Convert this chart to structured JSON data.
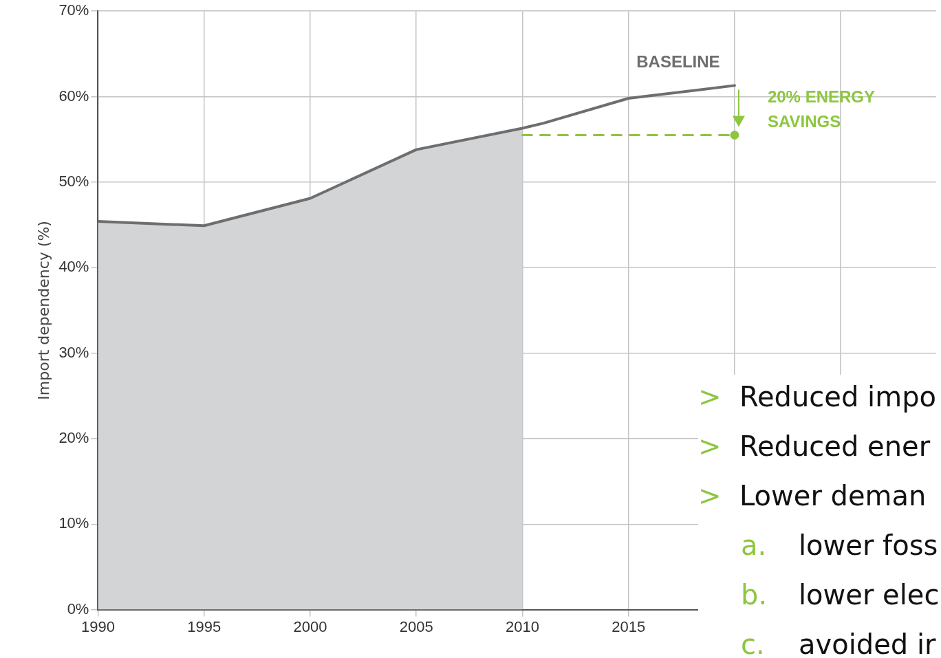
{
  "chart_data": {
    "type": "line",
    "ylabel": "Import dependency (%)",
    "xlim": [
      1990,
      2029.5
    ],
    "xticks": [
      1990,
      1995,
      2000,
      2005,
      2010,
      2015,
      {
        "value": 2020,
        "label": null
      },
      {
        "value": 2025,
        "label": null
      }
    ],
    "ylim": [
      0,
      70
    ],
    "yticks": [
      {
        "value": 0,
        "label": "0%"
      },
      {
        "value": 10,
        "label": "10%"
      },
      {
        "value": 20,
        "label": "20%"
      },
      {
        "value": 30,
        "label": "30%"
      },
      {
        "value": 40,
        "label": "40%"
      },
      {
        "value": 50,
        "label": "50%"
      },
      {
        "value": 60,
        "label": "60%"
      },
      {
        "value": 70,
        "label": "70%"
      }
    ],
    "grid": true,
    "legend": false,
    "marker": "none",
    "series": [
      {
        "type": "area",
        "color": "#d3d4d6",
        "x": [
          1990,
          1995,
          2000,
          2005,
          2010
        ],
        "values": [
          45.4,
          44.9,
          48.1,
          53.8,
          56.3
        ]
      },
      {
        "type": "line",
        "color": "#6d6e70",
        "x": [
          1990,
          1995,
          2000,
          2005,
          2010,
          2011,
          2015,
          2020
        ],
        "values": [
          45.4,
          44.9,
          48.1,
          53.8,
          56.3,
          56.9,
          59.8,
          61.3
        ]
      },
      {
        "type": "line",
        "color": "#8dc63f",
        "line_style": "dashed",
        "x": [
          2010,
          2020
        ],
        "values": [
          55.5,
          55.5
        ]
      },
      {
        "type": "scatter",
        "color": "#8dc63f",
        "marker": "circle",
        "x": [
          2020
        ],
        "values": [
          55.5
        ]
      }
    ],
    "annotations": [
      "BASELINE",
      "20% ENERGY SAVINGS",
      "> Reduced impo",
      "> Reduced ener",
      "> Lower deman",
      "a. lower foss",
      "b. lower elec",
      "c. avoided ir"
    ]
  }
}
